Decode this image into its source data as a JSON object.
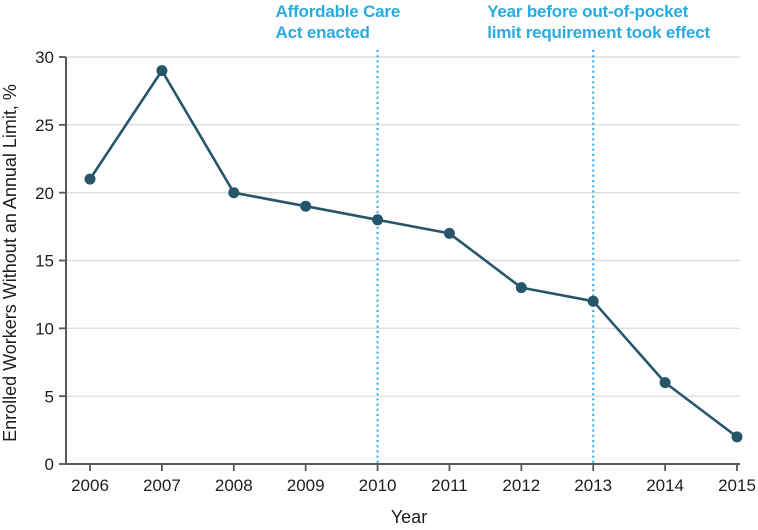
{
  "figure": {
    "xlabel": "Year",
    "ylabel": "Enrolled Workers Without an Annual Limit, %"
  },
  "chart_data": {
    "type": "line",
    "x": [
      2006,
      2007,
      2008,
      2009,
      2010,
      2011,
      2012,
      2013,
      2014,
      2015
    ],
    "series": [
      {
        "name": "Enrolled Workers Without an Annual Limit, %",
        "values": [
          21,
          29,
          20,
          19,
          18,
          17,
          13,
          12,
          6,
          2
        ]
      }
    ],
    "title": "",
    "xlabel": "Year",
    "ylabel": "Enrolled Workers Without an Annual Limit, %",
    "xlim": [
      2006,
      2015
    ],
    "ylim": [
      0,
      30
    ],
    "yticks": [
      0,
      5,
      10,
      15,
      20,
      25,
      30
    ],
    "xticks": [
      2006,
      2007,
      2008,
      2009,
      2010,
      2011,
      2012,
      2013,
      2014,
      2015
    ],
    "grid": true,
    "legend_position": "none",
    "annotations": [
      {
        "lines": [
          "Affordable Care",
          "Act enacted"
        ],
        "x": 2010,
        "line_style": "dotted"
      },
      {
        "lines": [
          "Year before out-of-pocket",
          "limit requirement took effect"
        ],
        "x": 2013,
        "line_style": "dotted"
      }
    ],
    "colors": {
      "series": "#27566A",
      "accent": "#29ABE2",
      "grid": "#DEDEDE",
      "axis": "#58585A",
      "text": "#1E1E1E"
    }
  }
}
